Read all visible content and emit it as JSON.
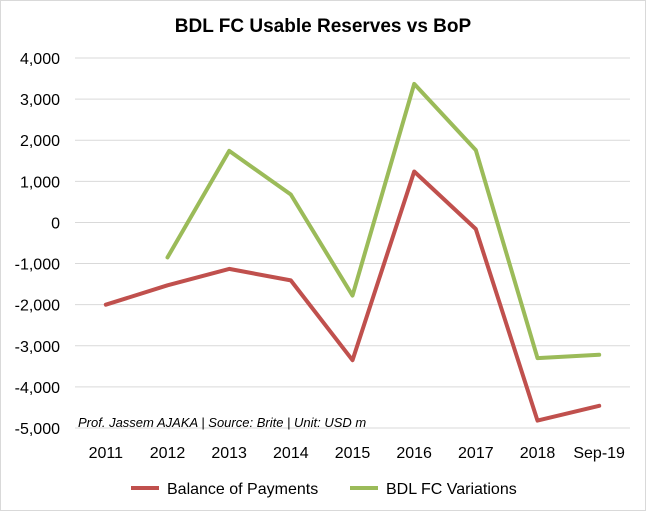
{
  "chart_data": {
    "type": "line",
    "title": "BDL FC Usable Reserves vs BoP",
    "categories": [
      "2011",
      "2012",
      "2013",
      "2014",
      "2015",
      "2016",
      "2017",
      "2018",
      "Sep-19"
    ],
    "series": [
      {
        "name": "Balance of Payments",
        "color": "#c0504d",
        "values": [
          -2000,
          -1530,
          -1130,
          -1410,
          -3350,
          1240,
          -160,
          -4820,
          -4460
        ]
      },
      {
        "name": "BDL FC Variations",
        "color": "#9bbb59",
        "values": [
          null,
          -850,
          1740,
          680,
          -1780,
          3370,
          1760,
          -3300,
          -3220
        ]
      }
    ],
    "ylim": [
      -5000,
      4000
    ],
    "yticks": [
      4000,
      3000,
      2000,
      1000,
      0,
      -1000,
      -2000,
      -3000,
      -4000,
      -5000
    ],
    "ytick_labels": [
      "4,000",
      "3,000",
      "2,000",
      "1,000",
      "0",
      "-1,000",
      "-2,000",
      "-3,000",
      "-4,000",
      "-5,000"
    ],
    "xlabel": "",
    "ylabel": "",
    "grid": true,
    "legend_position": "bottom",
    "annotation": "Prof. Jassem AJAKA | Source: Brite | Unit: USD m"
  }
}
